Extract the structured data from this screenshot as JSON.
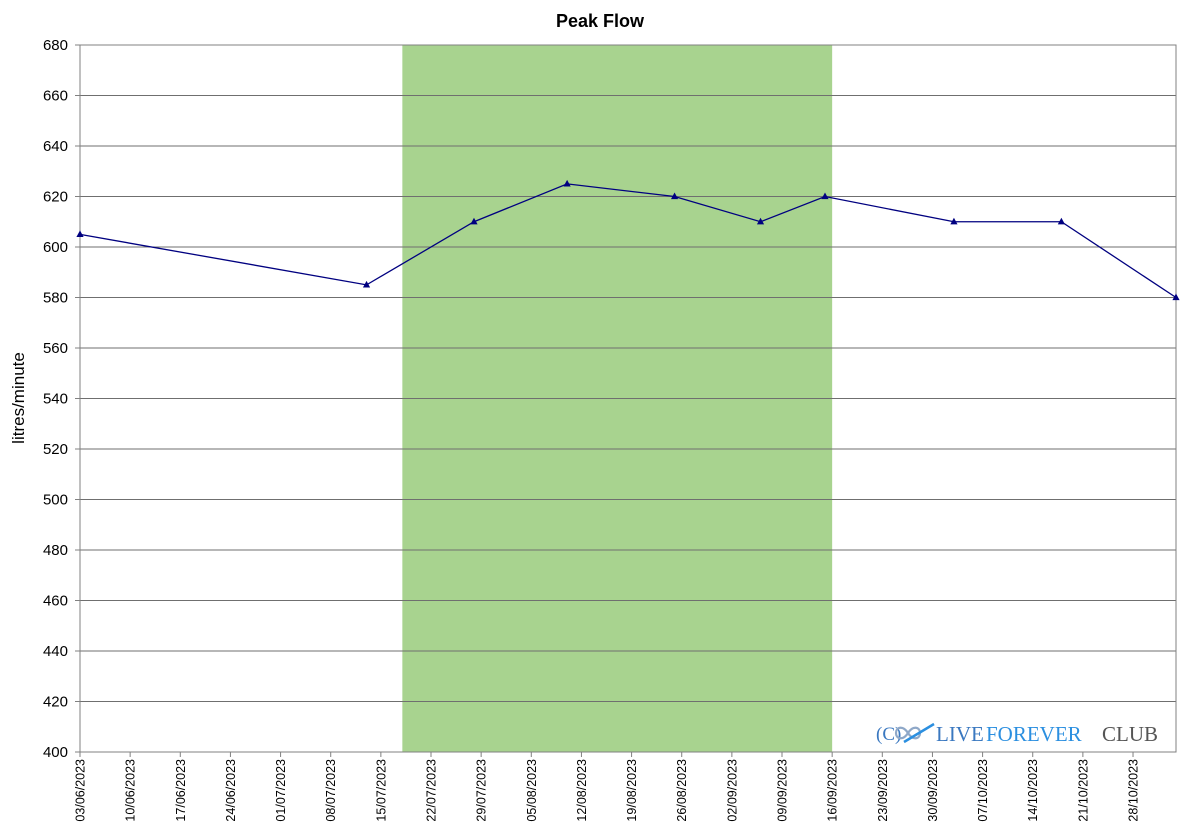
{
  "chart_data": {
    "type": "line",
    "title": "Peak Flow",
    "xlabel": "",
    "ylabel": "litres/minute",
    "ylim": [
      400,
      680
    ],
    "yticks": [
      400,
      420,
      440,
      460,
      480,
      500,
      520,
      540,
      560,
      580,
      600,
      620,
      640,
      660,
      680
    ],
    "xlim": [
      "2023-06-03",
      "2023-11-03"
    ],
    "xticks": [
      "03/06/2023",
      "10/06/2023",
      "17/06/2023",
      "24/06/2023",
      "01/07/2023",
      "08/07/2023",
      "15/07/2023",
      "22/07/2023",
      "29/07/2023",
      "05/08/2023",
      "12/08/2023",
      "19/08/2023",
      "26/08/2023",
      "02/09/2023",
      "09/09/2023",
      "16/09/2023",
      "23/09/2023",
      "30/09/2023",
      "07/10/2023",
      "14/10/2023",
      "21/10/2023",
      "28/10/2023"
    ],
    "grid": true,
    "highlight_band": {
      "start": "2023-07-18",
      "end": "2023-09-16",
      "color": "#a8d38f"
    },
    "series": [
      {
        "color": "#000080",
        "marker": "triangle",
        "points": [
          {
            "x": "2023-06-03",
            "y": 605
          },
          {
            "x": "2023-07-13",
            "y": 585
          },
          {
            "x": "2023-07-28",
            "y": 610
          },
          {
            "x": "2023-08-10",
            "y": 625
          },
          {
            "x": "2023-08-25",
            "y": 620
          },
          {
            "x": "2023-09-06",
            "y": 610
          },
          {
            "x": "2023-09-15",
            "y": 620
          },
          {
            "x": "2023-10-03",
            "y": 610
          },
          {
            "x": "2023-10-18",
            "y": 610
          },
          {
            "x": "2023-11-03",
            "y": 580
          }
        ]
      }
    ]
  },
  "watermark": {
    "copyright": "(C)",
    "live": "LIVE",
    "forever": "FOREVER",
    "club": "CLUB",
    "icon": "infinity-icon"
  }
}
